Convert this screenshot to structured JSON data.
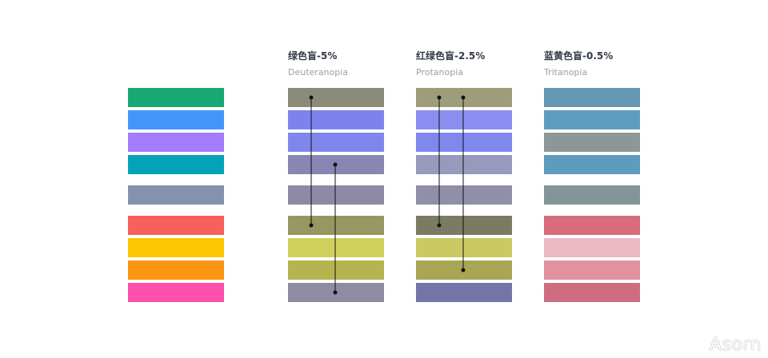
{
  "headers": [
    {
      "title": "绿色盲-5%",
      "subtitle": "Deuteranopia"
    },
    {
      "title": "红绿色盲-2.5%",
      "subtitle": "Protanopia"
    },
    {
      "title": "蓝黄色盲-0.5%",
      "subtitle": "Tritanopia"
    }
  ],
  "columns": [
    {
      "name": "original",
      "colors": [
        "#17a874",
        "#4596fa",
        "#a47bfb",
        "#03a2bb",
        "#8493ad",
        "#f8605b",
        "#fdc502",
        "#fc9512",
        "#fc50aa"
      ]
    },
    {
      "name": "deuteranopia",
      "colors": [
        "#8b8b79",
        "#7d83ee",
        "#7f87ec",
        "#8886b2",
        "#8c8aa4",
        "#989661",
        "#d0cf5c",
        "#b7b450",
        "#8e8ca2"
      ]
    },
    {
      "name": "protanopia",
      "colors": [
        "#9d9d7c",
        "#8b8ef1",
        "#8087ed",
        "#979abc",
        "#8f8fa7",
        "#7a7b62",
        "#cbc961",
        "#a8a653",
        "#7375a8"
      ]
    },
    {
      "name": "tritanopia",
      "colors": [
        "#6598b2",
        "#5f9dc0",
        "#8c9798",
        "#5d9cbc",
        "#84959a",
        "#d76c7b",
        "#ecb8c1",
        "#e0939f",
        "#cc6e80"
      ]
    }
  ],
  "links": [
    {
      "column": 1,
      "from_row": 0,
      "to_row": 5
    },
    {
      "column": 1,
      "from_row": 3,
      "to_row": 8
    },
    {
      "column": 2,
      "from_row": 0,
      "to_row": 5
    },
    {
      "column": 2,
      "from_row": 0,
      "to_row": 7
    }
  ],
  "watermark": "Asorn"
}
